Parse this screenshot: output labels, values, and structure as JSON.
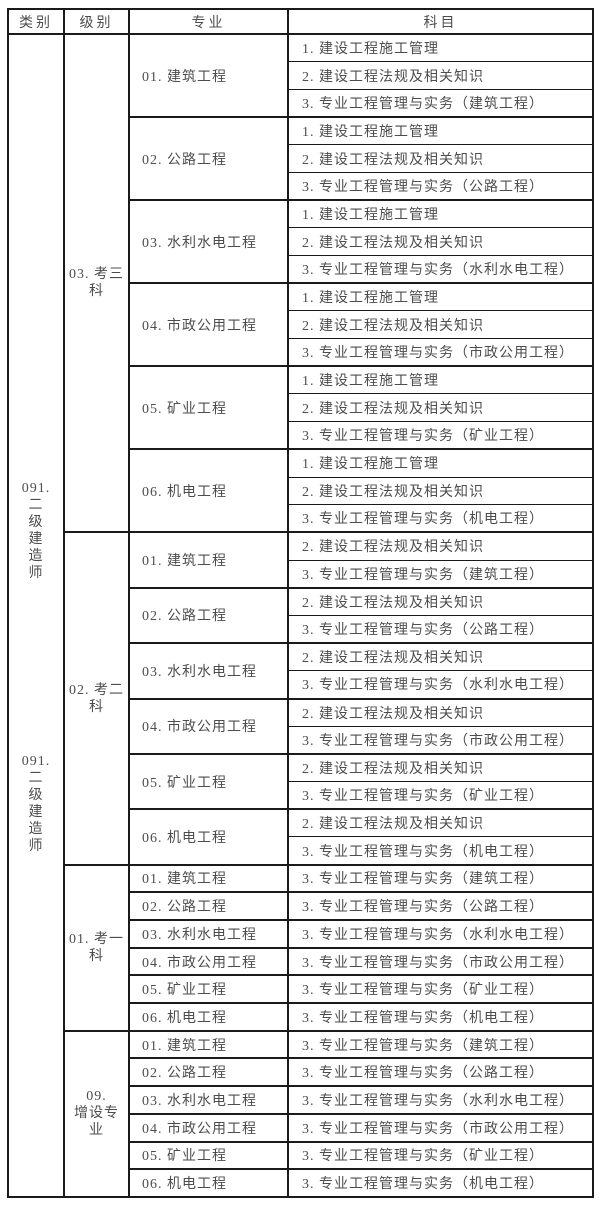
{
  "colors": {
    "border": "#1a1a1a",
    "text": "#4d4d4d",
    "background": "#ffffff"
  },
  "header": {
    "category": "类别",
    "level": "级别",
    "specialty": "专业",
    "subject": "科目"
  },
  "category": {
    "blocks": [
      "091.\n二\n级\n建\n造\n师",
      "091.\n二\n级\n建\n造\n师"
    ]
  },
  "sections": [
    {
      "level": "03. 考三\n科",
      "specialties": [
        {
          "name": "01. 建筑工程",
          "subjects": [
            "1. 建设工程施工管理",
            "2. 建设工程法规及相关知识",
            "3. 专业工程管理与实务（建筑工程）"
          ]
        },
        {
          "name": "02. 公路工程",
          "subjects": [
            "1. 建设工程施工管理",
            "2. 建设工程法规及相关知识",
            "3. 专业工程管理与实务（公路工程）"
          ]
        },
        {
          "name": "03. 水利水电工程",
          "subjects": [
            "1. 建设工程施工管理",
            "2. 建设工程法规及相关知识",
            "3. 专业工程管理与实务（水利水电工程）"
          ]
        },
        {
          "name": "04. 市政公用工程",
          "subjects": [
            "1. 建设工程施工管理",
            "2. 建设工程法规及相关知识",
            "3. 专业工程管理与实务（市政公用工程）"
          ]
        },
        {
          "name": "05. 矿业工程",
          "subjects": [
            "1. 建设工程施工管理",
            "2. 建设工程法规及相关知识",
            "3. 专业工程管理与实务（矿业工程）"
          ]
        },
        {
          "name": "06. 机电工程",
          "subjects": [
            "1. 建设工程施工管理",
            "2. 建设工程法规及相关知识",
            "3. 专业工程管理与实务（机电工程）"
          ]
        }
      ]
    },
    {
      "level": "02. 考二\n科",
      "specialties": [
        {
          "name": "01. 建筑工程",
          "subjects": [
            "2. 建设工程法规及相关知识",
            "3. 专业工程管理与实务（建筑工程）"
          ]
        },
        {
          "name": "02. 公路工程",
          "subjects": [
            "2. 建设工程法规及相关知识",
            "3. 专业工程管理与实务（公路工程）"
          ]
        },
        {
          "name": "03. 水利水电工程",
          "subjects": [
            "2. 建设工程法规及相关知识",
            "3. 专业工程管理与实务（水利水电工程）"
          ]
        },
        {
          "name": "04. 市政公用工程",
          "subjects": [
            "2. 建设工程法规及相关知识",
            "3. 专业工程管理与实务（市政公用工程）"
          ]
        },
        {
          "name": "05. 矿业工程",
          "subjects": [
            "2. 建设工程法规及相关知识",
            "3. 专业工程管理与实务（矿业工程）"
          ]
        },
        {
          "name": "06. 机电工程",
          "subjects": [
            "2. 建设工程法规及相关知识",
            "3. 专业工程管理与实务（机电工程）"
          ]
        }
      ]
    },
    {
      "level": "01. 考一\n科",
      "specialties": [
        {
          "name": "01. 建筑工程",
          "subjects": [
            "3. 专业工程管理与实务（建筑工程）"
          ]
        },
        {
          "name": "02. 公路工程",
          "subjects": [
            "3. 专业工程管理与实务（公路工程）"
          ]
        },
        {
          "name": "03. 水利水电工程",
          "subjects": [
            "3. 专业工程管理与实务（水利水电工程）"
          ]
        },
        {
          "name": "04. 市政公用工程",
          "subjects": [
            "3. 专业工程管理与实务（市政公用工程）"
          ]
        },
        {
          "name": "05. 矿业工程",
          "subjects": [
            "3. 专业工程管理与实务（矿业工程）"
          ]
        },
        {
          "name": "06. 机电工程",
          "subjects": [
            "3. 专业工程管理与实务（机电工程）"
          ]
        }
      ]
    },
    {
      "level": "09.\n增设专\n业",
      "specialties": [
        {
          "name": "01. 建筑工程",
          "subjects": [
            "3. 专业工程管理与实务（建筑工程）"
          ]
        },
        {
          "name": "02. 公路工程",
          "subjects": [
            "3. 专业工程管理与实务（公路工程）"
          ]
        },
        {
          "name": "03. 水利水电工程",
          "subjects": [
            "3. 专业工程管理与实务（水利水电工程）"
          ]
        },
        {
          "name": "04. 市政公用工程",
          "subjects": [
            "3. 专业工程管理与实务（市政公用工程）"
          ]
        },
        {
          "name": "05. 矿业工程",
          "subjects": [
            "3. 专业工程管理与实务（矿业工程）"
          ]
        },
        {
          "name": "06. 机电工程",
          "subjects": [
            "3. 专业工程管理与实务（机电工程）"
          ]
        }
      ]
    }
  ]
}
